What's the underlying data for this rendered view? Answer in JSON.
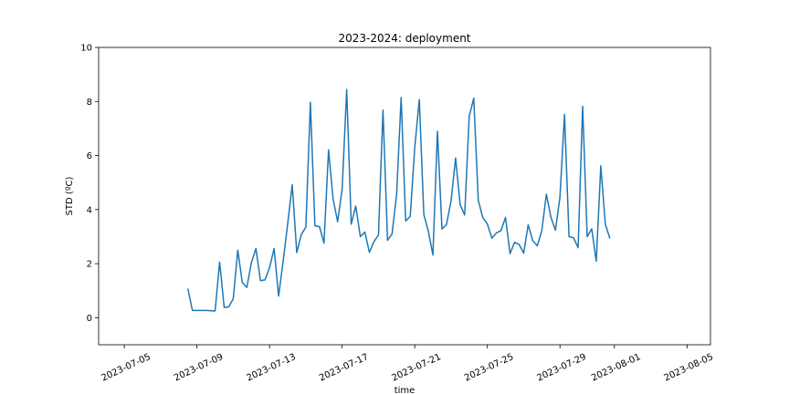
{
  "chart_data": {
    "type": "line",
    "title": "2023-2024: deployment",
    "xlabel": "time",
    "ylabel": "STD (ºC)",
    "xlim": [
      "2023-07-03T14:00",
      "2023-08-06T07:00"
    ],
    "ylim": [
      -1,
      10
    ],
    "x_ticks": [
      "2023-07-05",
      "2023-07-09",
      "2023-07-13",
      "2023-07-17",
      "2023-07-21",
      "2023-07-25",
      "2023-07-29",
      "2023-08-01",
      "2023-08-05"
    ],
    "y_ticks": [
      0,
      2,
      4,
      6,
      8,
      10
    ],
    "grid": false,
    "series": [
      {
        "color": "#1f77b4",
        "x": [
          "2023-07-08T12:00",
          "2023-07-08T18:00",
          "2023-07-09T00:00",
          "2023-07-09T12:00",
          "2023-07-10T00:00",
          "2023-07-10T06:00",
          "2023-07-10T12:00",
          "2023-07-10T18:00",
          "2023-07-11T00:00",
          "2023-07-11T06:00",
          "2023-07-11T12:00",
          "2023-07-11T18:00",
          "2023-07-12T00:00",
          "2023-07-12T06:00",
          "2023-07-12T12:00",
          "2023-07-12T18:00",
          "2023-07-13T00:00",
          "2023-07-13T06:00",
          "2023-07-13T12:00",
          "2023-07-13T18:00",
          "2023-07-14T00:00",
          "2023-07-14T06:00",
          "2023-07-14T12:00",
          "2023-07-14T18:00",
          "2023-07-15T00:00",
          "2023-07-15T06:00",
          "2023-07-15T12:00",
          "2023-07-15T18:00",
          "2023-07-16T00:00",
          "2023-07-16T06:00",
          "2023-07-16T12:00",
          "2023-07-16T18:00",
          "2023-07-17T00:00",
          "2023-07-17T06:00",
          "2023-07-17T12:00",
          "2023-07-17T18:00",
          "2023-07-18T00:00",
          "2023-07-18T06:00",
          "2023-07-18T12:00",
          "2023-07-18T18:00",
          "2023-07-19T00:00",
          "2023-07-19T06:00",
          "2023-07-19T12:00",
          "2023-07-19T18:00",
          "2023-07-20T00:00",
          "2023-07-20T06:00",
          "2023-07-20T12:00",
          "2023-07-20T18:00",
          "2023-07-21T00:00",
          "2023-07-21T06:00",
          "2023-07-21T12:00",
          "2023-07-21T18:00",
          "2023-07-22T00:00",
          "2023-07-22T06:00",
          "2023-07-22T12:00",
          "2023-07-22T18:00",
          "2023-07-23T00:00",
          "2023-07-23T06:00",
          "2023-07-23T12:00",
          "2023-07-23T18:00",
          "2023-07-24T00:00",
          "2023-07-24T06:00",
          "2023-07-24T12:00",
          "2023-07-24T18:00",
          "2023-07-25T00:00",
          "2023-07-25T06:00",
          "2023-07-25T12:00",
          "2023-07-25T18:00",
          "2023-07-26T00:00",
          "2023-07-26T06:00",
          "2023-07-26T12:00",
          "2023-07-26T18:00",
          "2023-07-27T00:00",
          "2023-07-27T06:00",
          "2023-07-27T12:00",
          "2023-07-27T18:00",
          "2023-07-28T00:00",
          "2023-07-28T06:00",
          "2023-07-28T12:00",
          "2023-07-28T18:00",
          "2023-07-29T00:00",
          "2023-07-29T06:00",
          "2023-07-29T12:00",
          "2023-07-29T18:00",
          "2023-07-30T00:00",
          "2023-07-30T06:00",
          "2023-07-30T12:00",
          "2023-07-30T18:00",
          "2023-07-31T00:00",
          "2023-07-31T06:00",
          "2023-07-31T12:00",
          "2023-07-31T18:00"
        ],
        "y": [
          1.08,
          0.27,
          0.27,
          0.27,
          0.25,
          2.06,
          0.38,
          0.4,
          0.7,
          2.5,
          1.3,
          1.12,
          2.04,
          2.56,
          1.37,
          1.4,
          1.85,
          2.56,
          0.8,
          2.1,
          3.48,
          4.92,
          2.41,
          3.08,
          3.35,
          7.97,
          3.4,
          3.37,
          2.76,
          6.21,
          4.4,
          3.55,
          4.76,
          8.44,
          3.46,
          4.13,
          3.0,
          3.17,
          2.42,
          2.81,
          3.06,
          7.68,
          2.86,
          3.1,
          4.56,
          8.15,
          3.58,
          3.75,
          6.3,
          8.07,
          3.82,
          3.2,
          2.32,
          6.9,
          3.28,
          3.45,
          4.33,
          5.91,
          4.18,
          3.8,
          7.45,
          8.12,
          4.34,
          3.7,
          3.47,
          2.94,
          3.14,
          3.22,
          3.71,
          2.37,
          2.79,
          2.71,
          2.39,
          3.44,
          2.85,
          2.66,
          3.22,
          4.57,
          3.72,
          3.24,
          4.47,
          7.52,
          3.0,
          2.96,
          2.59,
          7.82,
          3.0,
          3.29,
          2.09,
          5.62,
          3.46,
          2.93
        ]
      }
    ]
  }
}
